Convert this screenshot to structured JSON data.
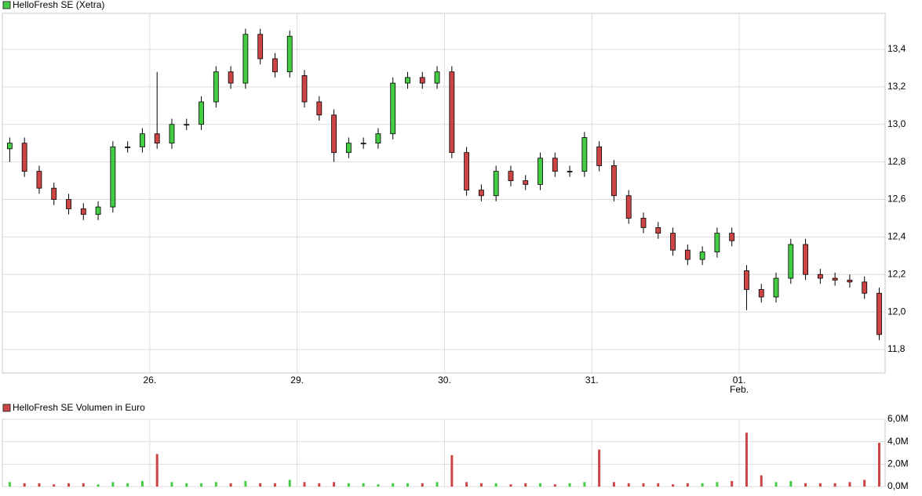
{
  "chart_data": [
    {
      "type": "candlestick",
      "legend": "HelloFresh SE (Xetra)",
      "legend_color": "#44cc44",
      "up_color": "#44cc44",
      "down_color": "#cc4444",
      "x": [
        0.05,
        0.15,
        0.25,
        0.35,
        0.45,
        0.55,
        0.65,
        0.75,
        0.85,
        0.95,
        1.05,
        1.15,
        1.25,
        1.35,
        1.45,
        1.55,
        1.65,
        1.75,
        1.85,
        1.95,
        2.05,
        2.15,
        2.25,
        2.35,
        2.45,
        2.55,
        2.65,
        2.75,
        2.85,
        2.95,
        3.05,
        3.15,
        3.25,
        3.35,
        3.45,
        3.55,
        3.65,
        3.75,
        3.85,
        3.95,
        4.05,
        4.15,
        4.25,
        4.35,
        4.45,
        4.55,
        4.65,
        4.75,
        4.85,
        4.95,
        5.05,
        5.15,
        5.25,
        5.35,
        5.45,
        5.55,
        5.65,
        5.75,
        5.85,
        5.95
      ],
      "open": [
        12.87,
        12.9,
        12.75,
        12.66,
        12.6,
        12.55,
        12.52,
        12.56,
        12.88,
        12.88,
        12.95,
        12.9,
        13.0,
        13.0,
        13.12,
        13.28,
        13.22,
        13.48,
        13.35,
        13.28,
        13.26,
        13.12,
        13.05,
        12.85,
        12.9,
        12.9,
        12.95,
        13.22,
        13.25,
        13.22,
        13.28,
        12.85,
        12.65,
        12.62,
        12.75,
        12.7,
        12.68,
        12.82,
        12.75,
        12.75,
        12.88,
        12.78,
        12.62,
        12.5,
        12.45,
        12.42,
        12.33,
        12.28,
        12.32,
        12.42,
        12.22,
        12.12,
        12.08,
        12.18,
        12.36,
        12.2,
        12.18,
        12.17,
        12.16,
        12.1
      ],
      "high": [
        12.93,
        12.93,
        12.78,
        12.69,
        12.63,
        12.58,
        12.59,
        12.91,
        12.91,
        12.98,
        13.28,
        13.03,
        13.03,
        13.15,
        13.31,
        13.31,
        13.51,
        13.51,
        13.38,
        13.5,
        13.29,
        13.15,
        13.08,
        12.93,
        12.93,
        12.98,
        13.25,
        13.28,
        13.28,
        13.31,
        13.31,
        12.88,
        12.68,
        12.78,
        12.78,
        12.73,
        12.85,
        12.85,
        12.78,
        12.96,
        12.91,
        12.81,
        12.65,
        12.53,
        12.48,
        12.45,
        12.36,
        12.35,
        12.45,
        12.45,
        12.25,
        12.15,
        12.21,
        12.39,
        12.39,
        12.23,
        12.21,
        12.2,
        12.19,
        12.13
      ],
      "low": [
        12.8,
        12.72,
        12.63,
        12.57,
        12.52,
        12.49,
        12.49,
        12.53,
        12.85,
        12.85,
        12.87,
        12.87,
        12.97,
        12.97,
        13.09,
        13.19,
        13.19,
        13.32,
        13.25,
        13.25,
        13.09,
        13.02,
        12.8,
        12.82,
        12.87,
        12.87,
        12.92,
        13.19,
        13.19,
        13.19,
        12.82,
        12.62,
        12.59,
        12.59,
        12.67,
        12.65,
        12.65,
        12.72,
        12.72,
        12.72,
        12.75,
        12.59,
        12.47,
        12.42,
        12.39,
        12.3,
        12.25,
        12.25,
        12.29,
        12.35,
        12.01,
        12.05,
        12.05,
        12.15,
        12.17,
        12.15,
        12.14,
        12.13,
        12.07,
        11.85
      ],
      "close": [
        12.9,
        12.75,
        12.66,
        12.6,
        12.55,
        12.52,
        12.56,
        12.88,
        12.88,
        12.95,
        12.9,
        13.0,
        13.0,
        13.12,
        13.28,
        13.22,
        13.48,
        13.35,
        13.28,
        13.47,
        13.12,
        13.05,
        12.85,
        12.9,
        12.9,
        12.95,
        13.22,
        13.25,
        13.22,
        13.28,
        12.85,
        12.65,
        12.62,
        12.75,
        12.7,
        12.68,
        12.82,
        12.75,
        12.75,
        12.93,
        12.78,
        12.62,
        12.5,
        12.45,
        12.42,
        12.33,
        12.28,
        12.32,
        12.42,
        12.38,
        12.12,
        12.08,
        12.18,
        12.36,
        12.2,
        12.18,
        12.17,
        12.16,
        12.1,
        11.88
      ],
      "xlim": [
        0,
        5.99
      ],
      "xticks": [
        {
          "value": 1,
          "label": "26."
        },
        {
          "value": 2,
          "label": "29."
        },
        {
          "value": 3,
          "label": "30."
        },
        {
          "value": 4,
          "label": "31."
        },
        {
          "value": 5,
          "label": "01."
        }
      ],
      "month_labels": [
        {
          "value": 5,
          "label": "Feb."
        }
      ],
      "ylim": [
        11.675,
        13.592
      ],
      "yticks": [
        {
          "value": 11.8,
          "label": "11,8"
        },
        {
          "value": 12.0,
          "label": "12,0"
        },
        {
          "value": 12.2,
          "label": "12,2"
        },
        {
          "value": 12.4,
          "label": "12,4"
        },
        {
          "value": 12.6,
          "label": "12,6"
        },
        {
          "value": 12.8,
          "label": "12,8"
        },
        {
          "value": 13.0,
          "label": "13,0"
        },
        {
          "value": 13.2,
          "label": "13,2"
        },
        {
          "value": 13.4,
          "label": "13,4"
        }
      ],
      "grid": true
    },
    {
      "type": "bar",
      "legend": "HelloFresh SE Volumen in Euro",
      "legend_color": "#cc4444",
      "values": [
        0.4,
        0.3,
        0.3,
        0.2,
        0.3,
        0.3,
        0.2,
        0.4,
        0.3,
        0.5,
        2.9,
        0.4,
        0.3,
        0.3,
        0.4,
        0.3,
        0.5,
        0.3,
        0.3,
        0.6,
        0.4,
        0.3,
        0.4,
        0.3,
        0.3,
        0.2,
        0.3,
        0.3,
        0.3,
        0.4,
        2.8,
        0.4,
        0.3,
        0.3,
        0.2,
        0.3,
        0.3,
        0.2,
        0.3,
        0.4,
        3.3,
        0.4,
        0.3,
        0.3,
        0.3,
        0.2,
        0.3,
        0.3,
        0.4,
        0.5,
        4.8,
        1.0,
        0.4,
        0.5,
        0.3,
        0.3,
        0.3,
        0.4,
        0.6,
        3.9
      ],
      "xlim": [
        0,
        5.99
      ],
      "xticks": [
        1,
        2,
        3,
        4,
        5
      ],
      "ylim": [
        0,
        6
      ],
      "yticks": [
        {
          "value": 0,
          "label": "0,0M"
        },
        {
          "value": 2,
          "label": "2,0M"
        },
        {
          "value": 4,
          "label": "4,0M"
        },
        {
          "value": 6,
          "label": "6,0M"
        }
      ],
      "grid": true
    }
  ]
}
